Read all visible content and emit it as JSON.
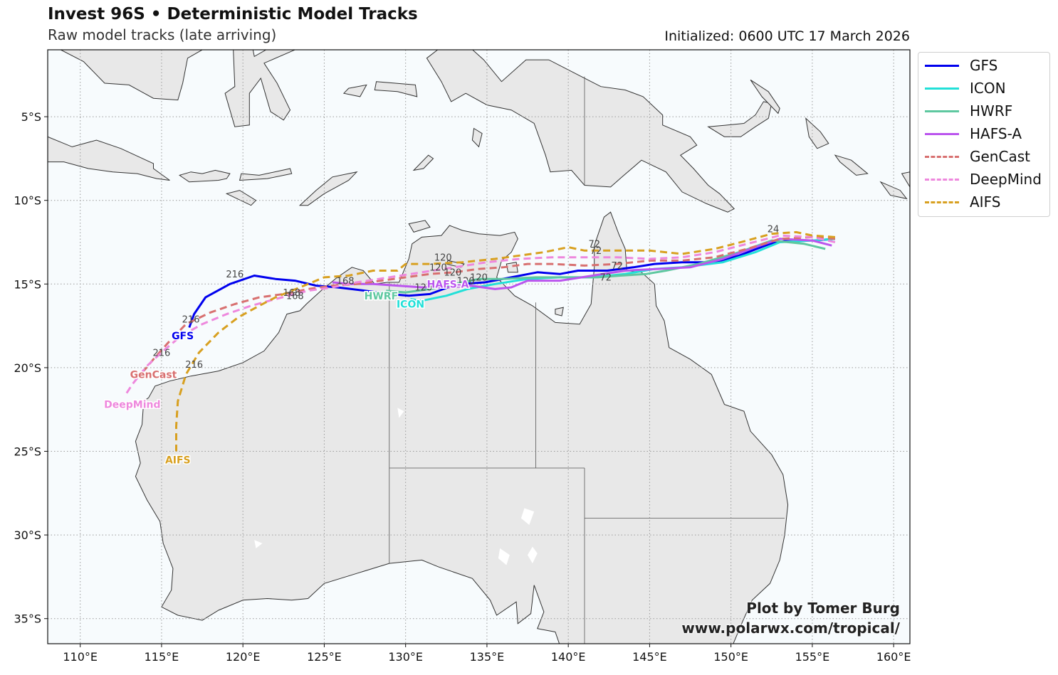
{
  "header": {
    "title": "Invest 96S • Deterministic Model Tracks",
    "subtitle": "Raw model tracks (late arriving)",
    "initialized": "Initialized: 0600 UTC 17 March 2026"
  },
  "map": {
    "projection": "equirectangular",
    "lon_range": [
      108,
      161
    ],
    "lat_range": [
      -36.5,
      -1
    ],
    "ocean_color": "#f7fbfd",
    "land_color": "#e8e8e8",
    "grid": true,
    "lon_ticks": [
      {
        "value": 110,
        "label": "110°E"
      },
      {
        "value": 115,
        "label": "115°E"
      },
      {
        "value": 120,
        "label": "120°E"
      },
      {
        "value": 125,
        "label": "125°E"
      },
      {
        "value": 130,
        "label": "130°E"
      },
      {
        "value": 135,
        "label": "135°E"
      },
      {
        "value": 140,
        "label": "140°E"
      },
      {
        "value": 145,
        "label": "145°E"
      },
      {
        "value": 150,
        "label": "150°E"
      },
      {
        "value": 155,
        "label": "155°E"
      },
      {
        "value": 160,
        "label": "160°E"
      }
    ],
    "lat_ticks": [
      {
        "value": -5,
        "label": "5°S"
      },
      {
        "value": -10,
        "label": "10°S"
      },
      {
        "value": -15,
        "label": "15°S"
      },
      {
        "value": -20,
        "label": "20°S"
      },
      {
        "value": -25,
        "label": "25°S"
      },
      {
        "value": -30,
        "label": "30°S"
      },
      {
        "value": -35,
        "label": "35°S"
      }
    ]
  },
  "legend": {
    "placement": "upper right, outside map",
    "items": [
      {
        "name": "GFS",
        "color": "#0000ee",
        "dashed": false
      },
      {
        "name": "ICON",
        "color": "#22e0d8",
        "dashed": false
      },
      {
        "name": "HWRF",
        "color": "#5ec8a0",
        "dashed": false
      },
      {
        "name": "HAFS-A",
        "color": "#bb55ee",
        "dashed": false
      },
      {
        "name": "GenCast",
        "color": "#d87070",
        "dashed": true
      },
      {
        "name": "DeepMind",
        "color": "#ee88dd",
        "dashed": true
      },
      {
        "name": "AIFS",
        "color": "#d8a020",
        "dashed": true
      }
    ]
  },
  "tracks": [
    {
      "name": "GFS",
      "label": "GFS",
      "color": "#0000ee",
      "dashed": false,
      "points": [
        [
          156.4,
          -12.3
        ],
        [
          155.2,
          -12.4
        ],
        [
          153.5,
          -12.4
        ],
        [
          152.4,
          -12.6
        ],
        [
          150.5,
          -13.3
        ],
        [
          149,
          -13.7
        ],
        [
          147,
          -13.7
        ],
        [
          145.3,
          -13.8
        ],
        [
          144,
          -14
        ],
        [
          142.4,
          -14.2
        ],
        [
          140.6,
          -14.2
        ],
        [
          139.5,
          -14.4
        ],
        [
          138.1,
          -14.3
        ],
        [
          136.5,
          -14.6
        ],
        [
          134.9,
          -14.9
        ],
        [
          133.5,
          -15
        ],
        [
          132.6,
          -15.2
        ],
        [
          131.5,
          -15.6
        ],
        [
          130.2,
          -15.7
        ],
        [
          129,
          -15.6
        ],
        [
          127.5,
          -15.4
        ],
        [
          125.8,
          -15.2
        ],
        [
          124.5,
          -15.1
        ],
        [
          123.2,
          -14.8
        ],
        [
          122,
          -14.7
        ],
        [
          120.7,
          -14.5
        ],
        [
          119.2,
          -15
        ],
        [
          117.7,
          -15.8
        ],
        [
          117,
          -16.8
        ],
        [
          116.7,
          -17.6
        ]
      ],
      "tau_labels": [
        {
          "text": "216",
          "lon": 119.5,
          "lat": -14.6
        },
        {
          "text": "216",
          "lon": 116.8,
          "lat": -17.3
        }
      ],
      "name_pos": {
        "lon": 116.3,
        "lat": -18.1
      }
    },
    {
      "name": "ICON",
      "label": "ICON",
      "color": "#22e0d8",
      "dashed": false,
      "points": [
        [
          156.4,
          -12.3
        ],
        [
          155,
          -12.4
        ],
        [
          153,
          -12.5
        ],
        [
          151.5,
          -13.1
        ],
        [
          149.5,
          -13.7
        ],
        [
          147,
          -14
        ],
        [
          145.3,
          -14.1
        ],
        [
          143.5,
          -14.4
        ],
        [
          141.5,
          -14.6
        ],
        [
          139.5,
          -14.6
        ],
        [
          137.5,
          -14.7
        ],
        [
          135.5,
          -15
        ],
        [
          133.8,
          -15.3
        ],
        [
          132.5,
          -15.7
        ],
        [
          131,
          -16
        ],
        [
          130.3,
          -15.9
        ]
      ],
      "tau_labels": [
        {
          "text": "120",
          "lon": 131.1,
          "lat": -15.4
        }
      ],
      "name_pos": {
        "lon": 130.3,
        "lat": -16.2
      }
    },
    {
      "name": "HWRF",
      "label": "HWRF",
      "color": "#5ec8a0",
      "dashed": false,
      "points": [
        [
          155.8,
          -12.9
        ],
        [
          154.5,
          -12.6
        ],
        [
          152.5,
          -12.4
        ],
        [
          150.5,
          -13.1
        ],
        [
          148,
          -13.8
        ],
        [
          146,
          -14.2
        ],
        [
          144.8,
          -14.4
        ],
        [
          143.2,
          -14.5
        ],
        [
          141.8,
          -14.6
        ],
        [
          140,
          -14.6
        ],
        [
          138,
          -14.6
        ],
        [
          136,
          -14.7
        ],
        [
          134.5,
          -14.7
        ],
        [
          133,
          -15
        ],
        [
          131.5,
          -15.3
        ],
        [
          130,
          -15.5
        ],
        [
          128.8,
          -15.4
        ]
      ],
      "tau_labels": [
        {
          "text": "120",
          "lon": 134.5,
          "lat": -14.8
        },
        {
          "text": "72",
          "lon": 142.3,
          "lat": -14.8
        }
      ],
      "name_pos": {
        "lon": 128.5,
        "lat": -15.7
      }
    },
    {
      "name": "HAFS-A",
      "label": "HAFS-A",
      "color": "#bb55ee",
      "dashed": false,
      "points": [
        [
          156.2,
          -12.7
        ],
        [
          155,
          -12.4
        ],
        [
          153,
          -12.3
        ],
        [
          151.5,
          -12.8
        ],
        [
          149.5,
          -13.5
        ],
        [
          147.5,
          -14
        ],
        [
          145.5,
          -14.1
        ],
        [
          143.5,
          -14.2
        ],
        [
          141.5,
          -14.5
        ],
        [
          139.5,
          -14.8
        ],
        [
          137.5,
          -14.8
        ],
        [
          136.5,
          -15.2
        ],
        [
          135.5,
          -15.3
        ],
        [
          134,
          -15.1
        ],
        [
          132.5,
          -15.2
        ],
        [
          131,
          -15.2
        ],
        [
          129.5,
          -15.1
        ],
        [
          128,
          -15
        ],
        [
          126.5,
          -15
        ],
        [
          125.5,
          -14.9
        ]
      ],
      "tau_labels": [
        {
          "text": "120",
          "lon": 133.7,
          "lat": -15.0
        },
        {
          "text": "168",
          "lon": 126.3,
          "lat": -15.0
        }
      ],
      "name_pos": {
        "lon": 132.6,
        "lat": -15.0
      }
    },
    {
      "name": "GenCast",
      "label": "GenCast",
      "color": "#d87070",
      "dashed": true,
      "points": [
        [
          156.4,
          -12.3
        ],
        [
          155,
          -12.2
        ],
        [
          153,
          -12.3
        ],
        [
          151,
          -12.9
        ],
        [
          149,
          -13.4
        ],
        [
          147,
          -13.6
        ],
        [
          145,
          -13.6
        ],
        [
          143,
          -13.8
        ],
        [
          141,
          -13.9
        ],
        [
          139,
          -13.8
        ],
        [
          137.5,
          -13.8
        ],
        [
          136,
          -14
        ],
        [
          134.5,
          -14.1
        ],
        [
          133,
          -14.3
        ],
        [
          131.5,
          -14.4
        ],
        [
          130,
          -14.6
        ],
        [
          128.5,
          -14.8
        ],
        [
          127,
          -15
        ],
        [
          125.5,
          -15.1
        ],
        [
          124,
          -15.3
        ],
        [
          122.5,
          -15.6
        ],
        [
          121,
          -15.8
        ],
        [
          119.5,
          -16.2
        ],
        [
          118,
          -16.7
        ],
        [
          116.5,
          -17.4
        ],
        [
          115.5,
          -18.4
        ],
        [
          114.5,
          -19.5
        ],
        [
          113.9,
          -20.2
        ]
      ],
      "tau_labels": [
        {
          "text": "72",
          "lon": 143.0,
          "lat": -14.1
        },
        {
          "text": "120",
          "lon": 132.9,
          "lat": -14.5
        },
        {
          "text": "168",
          "lon": 123.2,
          "lat": -15.9
        }
      ],
      "name_pos": {
        "lon": 114.5,
        "lat": -20.4
      }
    },
    {
      "name": "DeepMind",
      "label": "DeepMind",
      "color": "#ee88dd",
      "dashed": true,
      "points": [
        [
          156.4,
          -12.5
        ],
        [
          155,
          -12.2
        ],
        [
          153,
          -12.1
        ],
        [
          151,
          -12.6
        ],
        [
          149,
          -13.1
        ],
        [
          147,
          -13.4
        ],
        [
          145,
          -13.5
        ],
        [
          143,
          -13.4
        ],
        [
          141,
          -13.4
        ],
        [
          139,
          -13.4
        ],
        [
          137,
          -13.5
        ],
        [
          135,
          -13.7
        ],
        [
          133,
          -14
        ],
        [
          131,
          -14.3
        ],
        [
          129,
          -14.6
        ],
        [
          127,
          -14.9
        ],
        [
          125.5,
          -15.2
        ],
        [
          124,
          -15.4
        ],
        [
          122,
          -15.9
        ],
        [
          120.5,
          -16.3
        ],
        [
          119,
          -16.8
        ],
        [
          117.5,
          -17.4
        ],
        [
          116.2,
          -18.1
        ],
        [
          115.1,
          -19
        ],
        [
          114.1,
          -19.9
        ],
        [
          113.2,
          -21
        ],
        [
          112.8,
          -21.6
        ]
      ],
      "tau_labels": [
        {
          "text": "72",
          "lon": 141.7,
          "lat": -13.2
        },
        {
          "text": "120",
          "lon": 132.0,
          "lat": -14.2
        },
        {
          "text": "168",
          "lon": 123.0,
          "lat": -15.7
        },
        {
          "text": "216",
          "lon": 115.0,
          "lat": -19.3
        }
      ],
      "name_pos": {
        "lon": 113.2,
        "lat": -22.2
      }
    },
    {
      "name": "AIFS",
      "label": "AIFS",
      "color": "#d8a020",
      "dashed": true,
      "points": [
        [
          156.4,
          -12.2
        ],
        [
          155,
          -12.1
        ],
        [
          154,
          -11.9
        ],
        [
          152.5,
          -12
        ],
        [
          151,
          -12.4
        ],
        [
          149,
          -12.9
        ],
        [
          147,
          -13.2
        ],
        [
          145,
          -13
        ],
        [
          143,
          -13
        ],
        [
          141,
          -13
        ],
        [
          140,
          -12.8
        ],
        [
          138.5,
          -13.1
        ],
        [
          137,
          -13.3
        ],
        [
          135.5,
          -13.5
        ],
        [
          133.5,
          -13.7
        ],
        [
          131.5,
          -13.8
        ],
        [
          130,
          -13.8
        ],
        [
          129.5,
          -14.2
        ],
        [
          128,
          -14.2
        ],
        [
          126.5,
          -14.5
        ],
        [
          125,
          -14.6
        ],
        [
          123.5,
          -15.2
        ],
        [
          122,
          -15.8
        ],
        [
          121,
          -16.3
        ],
        [
          119.7,
          -17
        ],
        [
          118.5,
          -17.9
        ],
        [
          117.3,
          -19.1
        ],
        [
          116.5,
          -20.4
        ],
        [
          116,
          -22
        ],
        [
          115.9,
          -23.5
        ],
        [
          115.9,
          -25
        ]
      ],
      "tau_labels": [
        {
          "text": "120",
          "lon": 132.3,
          "lat": -13.6
        },
        {
          "text": "72",
          "lon": 141.6,
          "lat": -12.8
        },
        {
          "text": "216",
          "lon": 117.0,
          "lat": -20.0
        },
        {
          "text": "24",
          "lon": 152.6,
          "lat": -11.9
        }
      ],
      "name_pos": {
        "lon": 116.0,
        "lat": -25.5
      }
    }
  ],
  "credit": {
    "line1": "Plot by Tomer Burg",
    "line2": "www.polarwx.com/tropical/"
  }
}
